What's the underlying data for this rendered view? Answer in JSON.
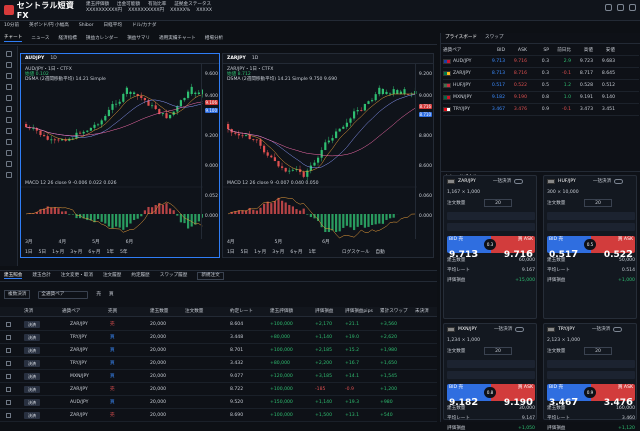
{
  "header": {
    "logo": "セントラル短資FX",
    "menus": [
      "建玉評価額",
      "出金可能額",
      "有効比率",
      "証拠金ステータス"
    ],
    "values": [
      "XXXXXXXXXX円",
      "XXXXXXXXXX円",
      "XXXXX%",
      "XXXXX"
    ],
    "account": "総資産 XXXXXXXXXX円"
  },
  "ticker": [
    "10分前",
    "英ポンド/円 小幅高",
    "Shibor",
    "日経平均",
    "ドル/カナダ"
  ],
  "chart_tabs": [
    "チャート",
    "ニュース",
    "経済指標",
    "損益カレンダー",
    "損益サマリ",
    "適用実績チャート",
    "相場分析"
  ],
  "charts": [
    {
      "pair": "AUDJPY",
      "title": "AUD/JPY・1日・CTFX",
      "open": "始値 0.102",
      "close": "終値 0.103",
      "ma": "DSMA (2週間移動平均) 14.21 Simple",
      "prices": [
        "9.600",
        "9.500",
        "9.400",
        "9.300",
        "9.200",
        "9.100",
        "9.000"
      ],
      "label_a": "9.106",
      "label_b": "9.100",
      "macd": "MACD 12 26 close 9  -0.006  0.022  0.026",
      "macd_prices": [
        "0.052",
        "0.020",
        "0.000",
        "-0.020"
      ],
      "months": [
        "3月",
        "4月",
        "5月",
        "6月"
      ],
      "footer": [
        "1日",
        "5日",
        "1ヶ月",
        "3ヶ月",
        "6ヶ月",
        "1年",
        "5年",
        "すべて"
      ],
      "log": "ログスケール",
      "auto": "自動"
    },
    {
      "pair": "ZARJPY",
      "title": "ZAR/JPY・1日・CTFX",
      "open": "始値 8.712",
      "close": "終値 8.719",
      "ma": "DSMA (2週間移動平均) 14.21 Simple  9.750  9.690",
      "prices": [
        "9.200",
        "9.100",
        "9.000",
        "8.900",
        "8.800",
        "8.700",
        "8.600"
      ],
      "label_a": "8.716",
      "label_b": "8.710",
      "macd": "MACD 12 26 close 9  -0.007  0.040  0.050",
      "macd_prices": [
        "0.060",
        "0.040",
        "0.020",
        "0.000"
      ],
      "months": [
        "4月",
        "5月",
        "6月"
      ],
      "footer": [
        "1日",
        "5日",
        "1ヶ月",
        "3ヶ月",
        "6ヶ月",
        "1年",
        "5年",
        "すべて"
      ],
      "log": "ログスケール",
      "auto": "自動"
    }
  ],
  "price_board": {
    "title": "プライスボード",
    "tab2": "スワップ",
    "headers": [
      "通貨ペア",
      "BID",
      "ASK",
      "SP",
      "前日比",
      "高値",
      "安値"
    ],
    "rows": [
      {
        "pair": "AUD/JPY",
        "bid": "9.713",
        "ask": "9.716",
        "sp": "0.3",
        "chg": "2.9",
        "hi": "9.723",
        "lo": "9.683"
      },
      {
        "pair": "ZAR/JPY",
        "bid": "8.713",
        "ask": "8.716",
        "sp": "0.3",
        "chg": "-0.1",
        "hi": "8.717",
        "lo": "8.645"
      },
      {
        "pair": "HUF/JPY",
        "bid": "0.517",
        "ask": "0.522",
        "sp": "0.5",
        "chg": "1.2",
        "hi": "0.528",
        "lo": "0.512"
      },
      {
        "pair": "MXN/JPY",
        "bid": "9.182",
        "ask": "9.190",
        "sp": "0.8",
        "chg": "1.0",
        "hi": "9.191",
        "lo": "9.140"
      },
      {
        "pair": "TRY/JPY",
        "bid": "3.467",
        "ask": "3.476",
        "sp": "0.9",
        "chg": "-0.1",
        "hi": "3.473",
        "lo": "3.451"
      }
    ]
  },
  "trade_panel": {
    "title": "トレードパネル",
    "order_label": "注文数量",
    "bid_label": "BID 売",
    "ask_label": "買 ASK",
    "rows": [
      "建玉数量",
      "平均レート",
      "評価損益"
    ],
    "cards": [
      {
        "pair": "ZAR/JPY",
        "mode": "一括決済",
        "bid_big": "9.71",
        "bid_small": "3",
        "ask_big": "9.71",
        "ask_small": "6",
        "spread": "0.3",
        "qty": "20",
        "max": "1,167 × 1,000",
        "vals": [
          "60,000",
          "9.167",
          "+15,000"
        ]
      },
      {
        "pair": "HUF/JPY",
        "mode": "一括決済",
        "bid_big": "0.51",
        "bid_small": "7",
        "ask_big": "0.52",
        "ask_small": "2",
        "spread": "0.5",
        "qty": "20",
        "max": "300 × 10,000",
        "vals": [
          "50,000",
          "0.514",
          "+1,000"
        ]
      },
      {
        "pair": "MXN/JPY",
        "mode": "一括決済",
        "bid_big": "9.18",
        "bid_small": "2",
        "ask_big": "9.19",
        "ask_small": "0",
        "spread": "0.8",
        "qty": "20",
        "max": "1,234 × 1,000",
        "vals": [
          "30,000",
          "9.147",
          "+1,050"
        ]
      },
      {
        "pair": "TRY/JPY",
        "mode": "一括決済",
        "bid_big": "3.46",
        "bid_small": "7",
        "ask_big": "3.47",
        "ask_small": "6",
        "spread": "0.9",
        "qty": "20",
        "max": "2,123 × 1,000",
        "vals": [
          "160,000",
          "3.460",
          "+1,120"
        ]
      }
    ]
  },
  "positions": {
    "tabs": [
      "建玉照会",
      "建玉合計",
      "注文変更・取消",
      "注文履歴",
      "約定履歴",
      "スワップ履歴",
      "新規注文"
    ],
    "filter_btn": "複数決済",
    "filter_pair": "全通貨ペア",
    "sell": "売",
    "buy": "買",
    "headers": [
      "決済",
      "通貨ペア",
      "売買",
      "建玉数量",
      "注文数量",
      "約定レート",
      "建玉評価額",
      "評価損益",
      "評価損益pips",
      "累計スワップ",
      "未決済"
    ],
    "rows": [
      {
        "pair": "ZAR/JPY",
        "side": "売",
        "qty": "20,000",
        "rate": "8.604",
        "val": "+100,000",
        "pl": "+2,170",
        "pips": "+21.1",
        "swap": "+3,560"
      },
      {
        "pair": "TRY/JPY",
        "side": "買",
        "qty": "20,000",
        "rate": "3.448",
        "val": "+80,000",
        "pl": "+1,140",
        "pips": "+19.0",
        "swap": "+2,620"
      },
      {
        "pair": "ZAR/JPY",
        "side": "買",
        "qty": "20,000",
        "rate": "8.701",
        "val": "+100,000",
        "pl": "+2,185",
        "pips": "+15.2",
        "swap": "+1,980"
      },
      {
        "pair": "TRY/JPY",
        "side": "買",
        "qty": "20,000",
        "rate": "3.432",
        "val": "+80,000",
        "pl": "+2,200",
        "pips": "+16.7",
        "swap": "+1,650"
      },
      {
        "pair": "MXN/JPY",
        "side": "買",
        "qty": "20,000",
        "rate": "9.077",
        "val": "+120,000",
        "pl": "+3,185",
        "pips": "+14.1",
        "swap": "+1,545"
      },
      {
        "pair": "ZAR/JPY",
        "side": "売",
        "qty": "20,000",
        "rate": "8.722",
        "val": "+100,000",
        "pl": "-185",
        "pips": "-0.9",
        "swap": "+1,200"
      },
      {
        "pair": "AUD/JPY",
        "side": "買",
        "qty": "20,000",
        "rate": "9.520",
        "val": "+150,000",
        "pl": "+1,140",
        "pips": "+19.3",
        "swap": "+980"
      },
      {
        "pair": "ZAR/JPY",
        "side": "売",
        "qty": "20,000",
        "rate": "8.690",
        "val": "+100,000",
        "pl": "+1,500",
        "pips": "+13.1",
        "swap": "+540"
      }
    ],
    "settle": "決済"
  }
}
